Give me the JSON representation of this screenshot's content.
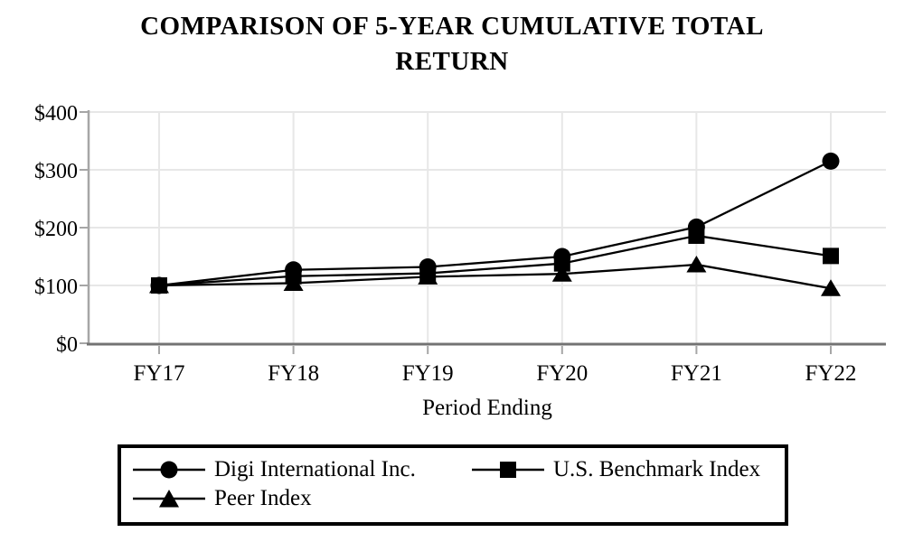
{
  "title": "COMPARISON OF 5-YEAR CUMULATIVE TOTAL RETURN",
  "chart_data": {
    "type": "line",
    "categories": [
      "FY17",
      "FY18",
      "FY19",
      "FY20",
      "FY21",
      "FY22"
    ],
    "series": [
      {
        "name": "Digi International Inc.",
        "marker": "circle",
        "values": [
          100,
          127,
          132,
          150,
          201,
          315
        ]
      },
      {
        "name": "U.S. Benchmark Index",
        "marker": "square",
        "values": [
          100,
          116,
          121,
          138,
          186,
          151
        ]
      },
      {
        "name": "Peer Index",
        "marker": "triangle",
        "values": [
          100,
          104,
          115,
          120,
          136,
          95
        ]
      }
    ],
    "xlabel": "Period Ending",
    "ylabel": "",
    "ylim": [
      0,
      400
    ],
    "y_tick_step": 100,
    "y_tick_labels": [
      "$0",
      "$100",
      "$200",
      "$300",
      "$400"
    ],
    "grid": true,
    "legend_position": "bottom",
    "colors": {
      "series": "#000000",
      "gridline": "#e7e7e7",
      "y_axis": "#a6a6a6",
      "x_axis": "#737373",
      "text": "#000000"
    }
  }
}
